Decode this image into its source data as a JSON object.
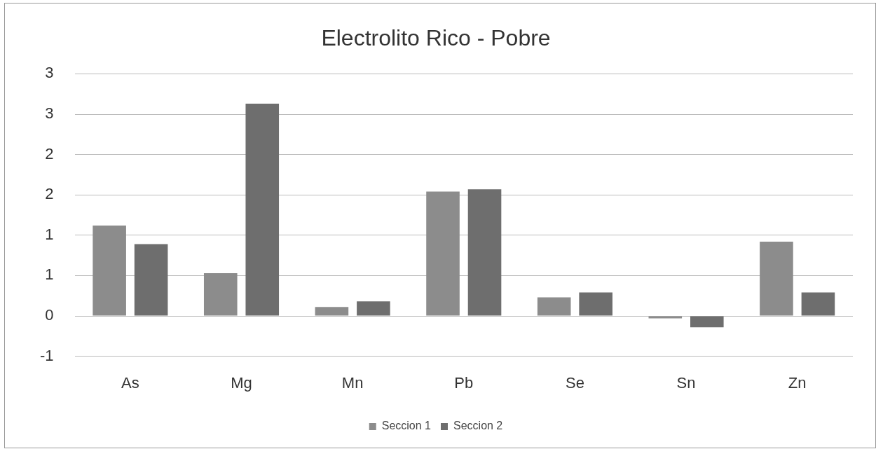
{
  "chart_data": {
    "type": "bar",
    "title": "Electrolito Rico - Pobre",
    "categories": [
      "As",
      "Mg",
      "Mn",
      "Pb",
      "Se",
      "Sn",
      "Zn"
    ],
    "series": [
      {
        "name": "Seccion 1",
        "color": "#8c8c8c",
        "values": [
          1.12,
          0.53,
          0.11,
          1.54,
          0.23,
          -0.03,
          0.92
        ]
      },
      {
        "name": "Seccion 2",
        "color": "#6e6e6e",
        "values": [
          0.89,
          2.63,
          0.18,
          1.57,
          0.29,
          -0.14,
          0.29
        ]
      }
    ],
    "ylim": [
      -0.5,
      3
    ],
    "yticks": [
      {
        "value": -0.5,
        "label": "-1"
      },
      {
        "value": 0,
        "label": "0"
      },
      {
        "value": 0.5,
        "label": "1"
      },
      {
        "value": 1,
        "label": "1"
      },
      {
        "value": 1.5,
        "label": "2"
      },
      {
        "value": 2,
        "label": "2"
      },
      {
        "value": 2.5,
        "label": "3"
      },
      {
        "value": 3,
        "label": "3"
      }
    ],
    "grid": "y",
    "legend": "bottom"
  }
}
